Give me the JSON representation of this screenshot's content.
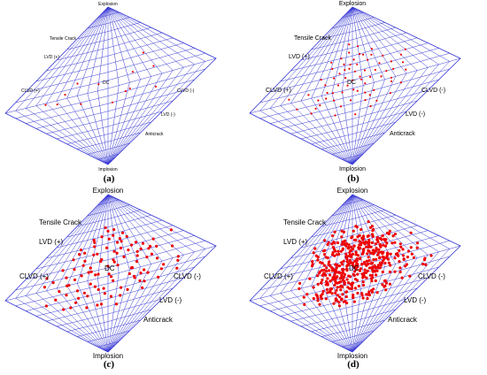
{
  "labels": {
    "top": "Explosion",
    "bottom": "Implosion",
    "tensile": "Tensile Crack",
    "lvd_pos": "LVD (+)",
    "clvd_pos": "CLVD (+)",
    "dc": "DC",
    "clvd_neg": "CLVD (-)",
    "lvd_neg": "LVD (-)",
    "anticrack": "Anticrack"
  },
  "colors": {
    "grid": "#3b3bd6",
    "point": "#ee0000"
  },
  "chart_data": [
    {
      "type": "scatter",
      "panel": "(a)",
      "x": [
        -0.35,
        0.48,
        -0.52,
        0.18,
        -0.44,
        -0.1,
        0.22,
        -0.3,
        0.26,
        0.52,
        0.48,
        -0.62,
        0.05
      ],
      "y": [
        0.15,
        0.12,
        -0.05,
        -0.1,
        0.05,
        0.08,
        -0.08,
        -0.12,
        0.12,
        -0.15,
        0.32,
        -0.02,
        -0.2
      ]
    },
    {
      "type": "scatter",
      "panel": "(b)",
      "x": [
        -0.6,
        -0.45,
        -0.38,
        -0.35,
        -0.3,
        -0.28,
        -0.25,
        -0.22,
        -0.2,
        -0.18,
        -0.16,
        -0.15,
        -0.12,
        -0.1,
        -0.08,
        -0.06,
        -0.05,
        -0.04,
        -0.02,
        0,
        0.02,
        0.03,
        0.05,
        0.06,
        0.08,
        0.1,
        0.12,
        0.14,
        0.15,
        0.18,
        0.2,
        0.22,
        0.25,
        0.28,
        0.3,
        0.32,
        0.35,
        0.38,
        0.4,
        0.45,
        0.5,
        0.55,
        0.6,
        -0.5,
        -0.42,
        -0.33,
        -0.24,
        -0.14,
        -0.07,
        0.04,
        0.11,
        0.19,
        0.27,
        0.36,
        0.44,
        0.52,
        0.7,
        -0.65,
        -0.1,
        0.09,
        0.16,
        -0.19,
        0.24,
        -0.27,
        0.31,
        0.42,
        -0.36,
        0.13,
        -0.03,
        0.01
      ],
      "y": [
        -0.1,
        0.05,
        0.2,
        -0.05,
        0.12,
        0.3,
        0.02,
        0.18,
        -0.1,
        0.4,
        0.22,
        0.08,
        0.32,
        -0.02,
        0.15,
        0.45,
        0.05,
        0.25,
        -0.15,
        0.1,
        0.35,
        0.2,
        -0.05,
        0.28,
        0.12,
        0.5,
        0.02,
        0.18,
        -0.2,
        0.08,
        0.3,
        -0.1,
        0.15,
        0.05,
        -0.25,
        0.22,
        0.1,
        -0.05,
        0.3,
        0.2,
        -0.1,
        0.15,
        0.25,
        -0.2,
        -0.15,
        0.38,
        -0.3,
        -0.2,
        0.55,
        -0.35,
        0.4,
        -0.15,
        0.35,
        0.0,
        -0.2,
        0.05,
        0.3,
        0.05,
        0.25,
        0.08,
        0.38,
        0.0,
        -0.3,
        -0.05,
        0.42,
        0.1,
        -0.12,
        -0.1,
        0.3,
        -0.02
      ]
    },
    {
      "type": "scatter",
      "panel": "(c)",
      "x": [
        -0.75,
        -0.65,
        -0.6,
        -0.55,
        -0.5,
        -0.48,
        -0.45,
        -0.42,
        -0.4,
        -0.38,
        -0.35,
        -0.33,
        -0.3,
        -0.28,
        -0.25,
        -0.22,
        -0.2,
        -0.18,
        -0.15,
        -0.12,
        -0.1,
        -0.08,
        -0.05,
        -0.02,
        0,
        0.02,
        0.05,
        0.08,
        0.1,
        0.12,
        0.15,
        0.18,
        0.2,
        0.22,
        0.25,
        0.28,
        0.3,
        0.32,
        0.35,
        0.38,
        0.4,
        0.42,
        0.45,
        0.48,
        0.5,
        0.55,
        0.6,
        0.65,
        0.7,
        0.75,
        0.9,
        -0.7,
        -0.52,
        -0.44,
        -0.36,
        -0.26,
        -0.16,
        -0.06,
        0.04,
        0.14,
        0.24,
        0.34,
        0.44,
        0.54,
        -0.58,
        -0.46,
        -0.32,
        -0.24,
        -0.14,
        -0.04,
        0.06,
        0.16,
        0.26,
        0.36,
        0.46,
        0.56,
        -0.4,
        -0.3,
        -0.2,
        -0.1,
        0.01,
        0.11,
        0.21,
        0.31,
        0.41,
        -0.34,
        -0.21,
        -0.09,
        0.03,
        0.17,
        0.29,
        0.39,
        -0.27,
        -0.13,
        0.07,
        0.19,
        0.33,
        -0.18,
        0.0,
        0.13,
        0.27,
        -0.11,
        0.09,
        0.23,
        -0.43,
        0.47,
        0.58,
        -0.62,
        0.68
      ],
      "y": [
        -0.2,
        0.05,
        -0.15,
        0.2,
        -0.05,
        0.3,
        0.1,
        -0.25,
        0.18,
        0.0,
        0.35,
        -0.1,
        0.25,
        0.08,
        -0.2,
        0.4,
        0.15,
        -0.05,
        0.3,
        0.5,
        0.05,
        0.22,
        -0.15,
        0.35,
        0.12,
        0.45,
        -0.08,
        0.28,
        0.1,
        0.55,
        -0.2,
        0.18,
        0.38,
        0.02,
        0.25,
        -0.12,
        0.42,
        0.15,
        -0.05,
        0.32,
        0.1,
        -0.2,
        0.28,
        0.05,
        0.22,
        -0.1,
        0.3,
        0.0,
        0.15,
        -0.15,
        0.35,
        0.15,
        -0.3,
        0.4,
        -0.2,
        0.48,
        -0.35,
        0.6,
        -0.28,
        0.38,
        -0.25,
        0.2,
        -0.28,
        -0.05,
        0.08,
        -0.12,
        -0.35,
        0.45,
        -0.1,
        -0.22,
        0.18,
        -0.3,
        0.48,
        -0.18,
        0.12,
        0.2,
        0.0,
        0.2,
        0.3,
        -0.35,
        0.02,
        0.25,
        -0.05,
        0.3,
        -0.1,
        0.05,
        0.1,
        0.2,
        -0.02,
        0.3,
        0.08,
        0.22,
        -0.15,
        0.05,
        0.15,
        0.42,
        -0.08,
        0.1,
        0.55,
        -0.4,
        -0.1,
        -0.15,
        0.48,
        0.02,
        0.35,
        0.2,
        -0.2,
        -0.3,
        -0.05
      ]
    },
    {
      "type": "scatter",
      "panel": "(d)",
      "points": 480,
      "x_range": [
        -0.8,
        0.95
      ],
      "y_range": [
        -0.4,
        0.65
      ]
    }
  ],
  "panels": [
    {
      "label": "(a)"
    },
    {
      "label": "(b)"
    },
    {
      "label": "(c)"
    },
    {
      "label": "(d)"
    }
  ]
}
